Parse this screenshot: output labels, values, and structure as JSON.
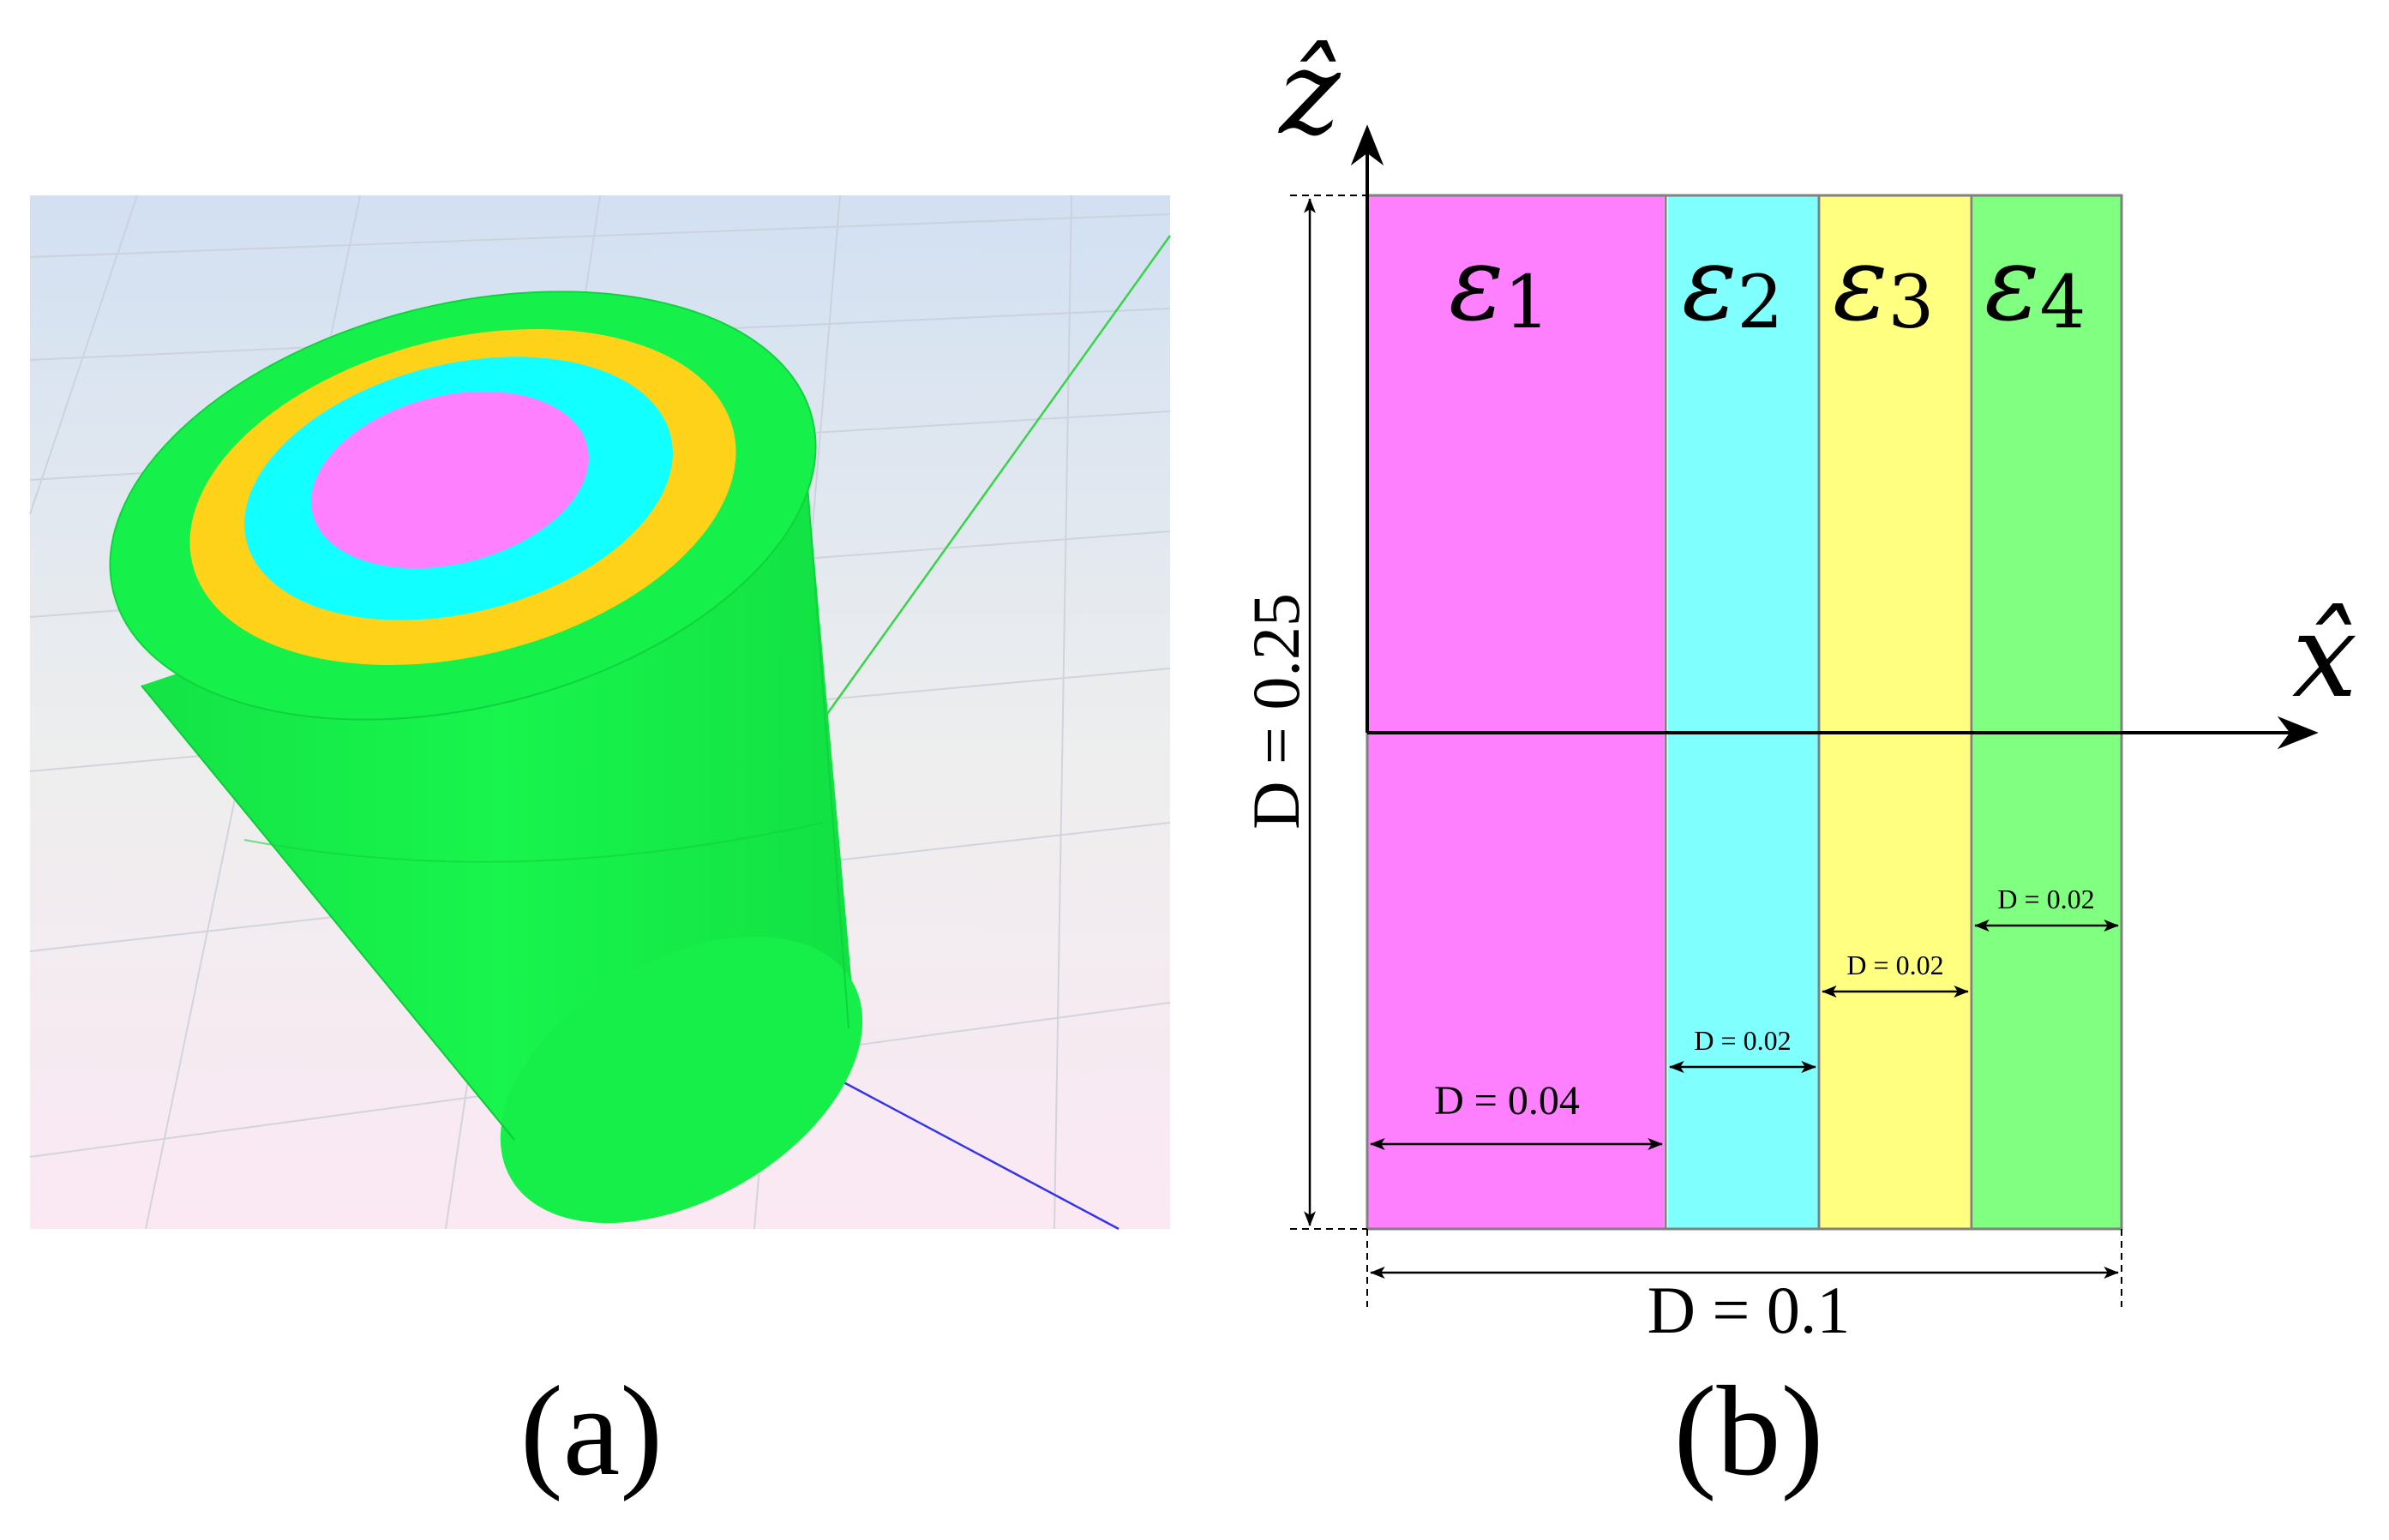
{
  "panel_a": {
    "caption": "(a)",
    "colors": {
      "background_top": "#d6e3f3",
      "background_bottom": "#fbe9f3",
      "outer_green": "#16f04a",
      "gold_ring": "#ffd21a",
      "cyan_ring": "#12ffff",
      "magenta_core": "#ff80ff",
      "axis_green": "#39d34a",
      "axis_blue": "#3535e6"
    }
  },
  "panel_b": {
    "caption": "(b)",
    "axis_z_label": "ẑ",
    "axis_x_label": "x̂",
    "regions": [
      {
        "symbol": "ε",
        "index": "1",
        "color": "#ff80ff",
        "width_label": "D = 0.04"
      },
      {
        "symbol": "ε",
        "index": "2",
        "color": "#80ffff",
        "width_label": "D = 0.02"
      },
      {
        "symbol": "ε",
        "index": "3",
        "color": "#ffff80",
        "width_label": "D = 0.02"
      },
      {
        "symbol": "ε",
        "index": "4",
        "color": "#80ff80",
        "width_label": "D = 0.02"
      }
    ],
    "height_label": "D = 0.25",
    "total_width_label": "D = 0.1"
  }
}
